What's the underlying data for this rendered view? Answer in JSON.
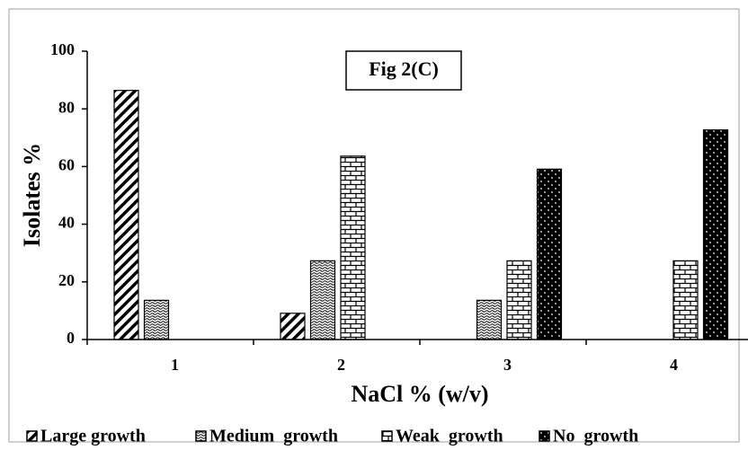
{
  "chart_data": {
    "type": "bar",
    "title": "Fig 2(C)",
    "x_label": "NaCl % (w/v)",
    "y_label": "Isolates %",
    "categories": [
      "1",
      "2",
      "3",
      "4"
    ],
    "series": [
      {
        "name": "Large growth",
        "color": "#000000",
        "values": [
          86.4,
          9.1,
          0,
          0
        ]
      },
      {
        "name": "Medium  growth",
        "color": "#000000",
        "values": [
          13.6,
          27.3,
          13.6,
          0
        ]
      },
      {
        "name": "Weak  growth",
        "color": "#000000",
        "values": [
          0,
          63.6,
          27.3,
          27.3
        ]
      },
      {
        "name": "No  growth",
        "color": "#000000",
        "values": [
          0,
          0,
          59.1,
          72.7
        ]
      }
    ],
    "ylim": [
      0,
      100
    ],
    "yticks": [
      0,
      20,
      40,
      60,
      80,
      100
    ],
    "grid": false
  }
}
